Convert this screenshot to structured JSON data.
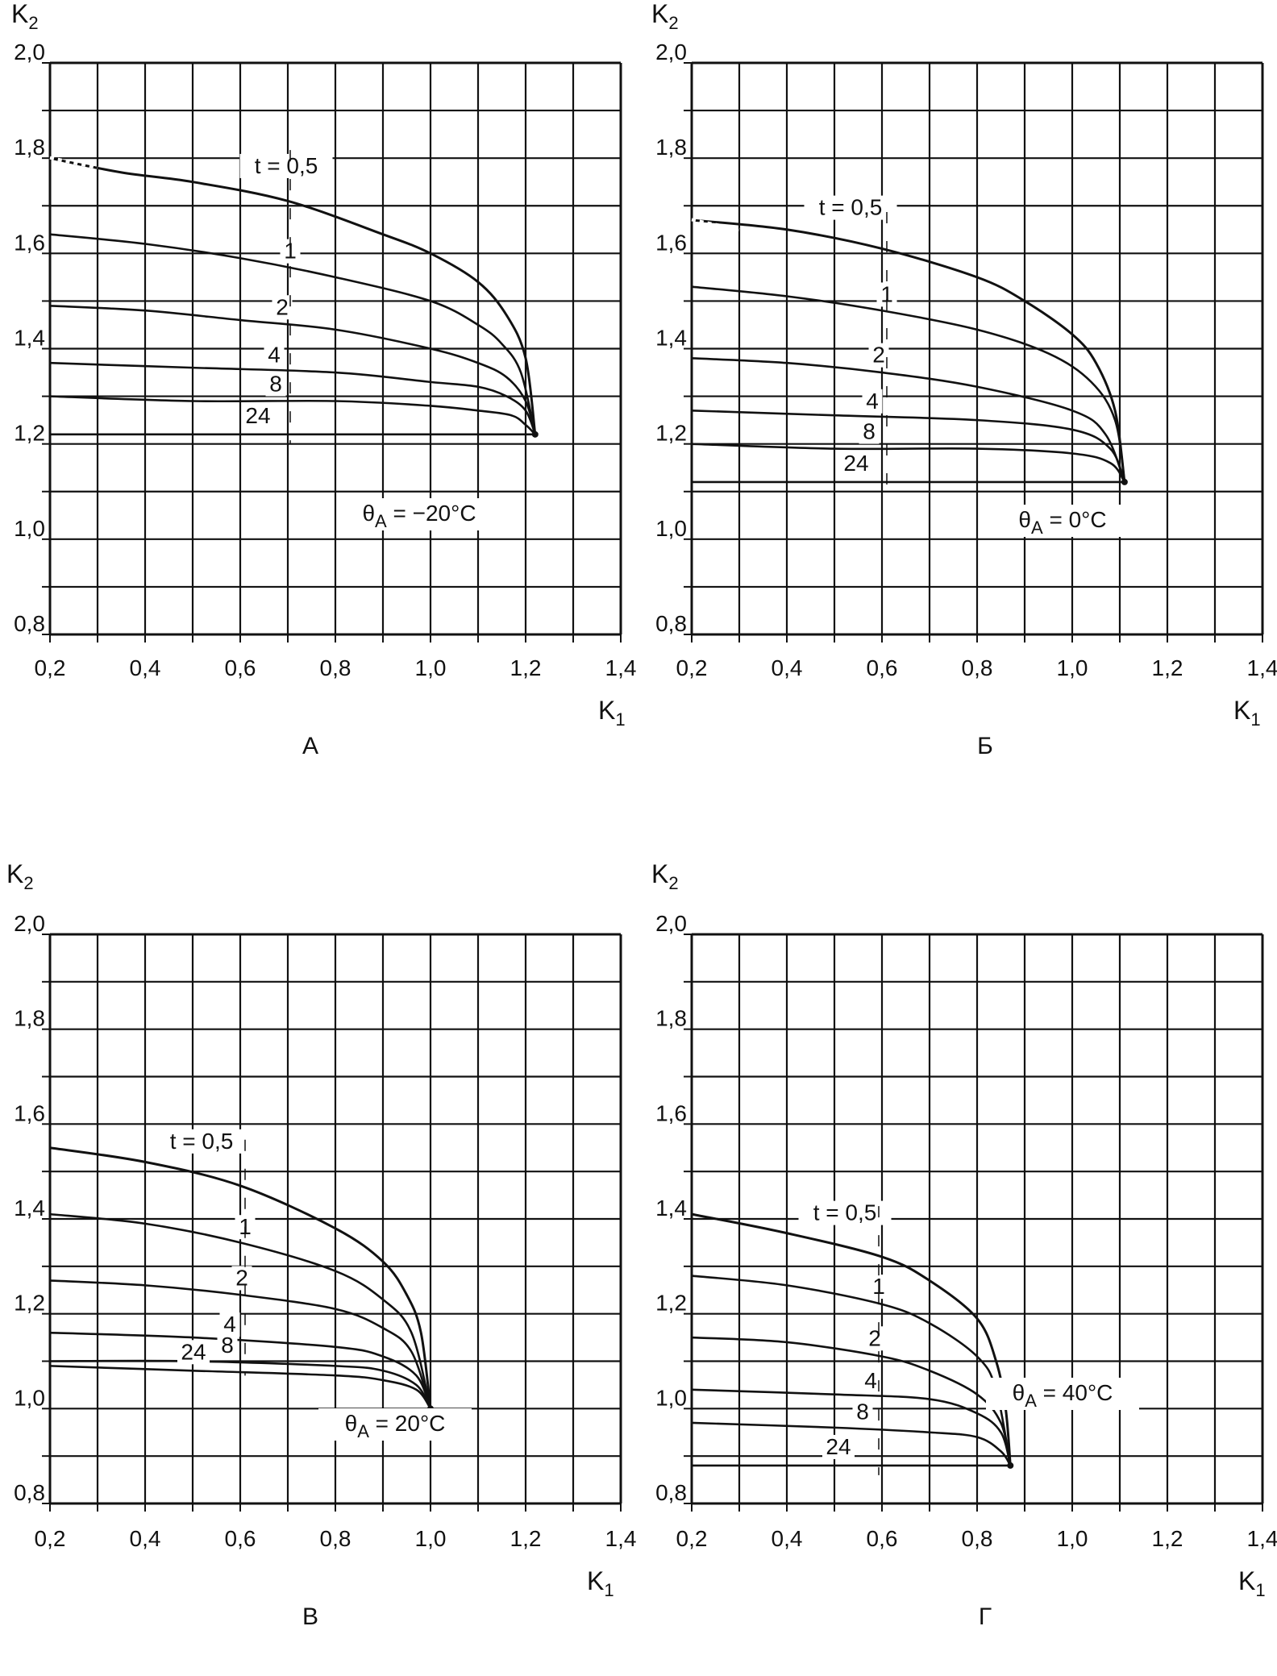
{
  "figure": {
    "colors": {
      "ink": "#111111",
      "background": "#ffffff"
    }
  },
  "chart_data": [
    {
      "type": "line",
      "panel_label": "А",
      "xlabel": "K",
      "xlabel_sub": "1",
      "ylabel": "K",
      "ylabel_sub": "2",
      "xlim": [
        0.2,
        1.4
      ],
      "ylim": [
        0.8,
        2.0
      ],
      "x_ticks": [
        "0,2",
        "0,4",
        "0,6",
        "0,8",
        "1,0",
        "1,2",
        "1,4"
      ],
      "y_ticks": [
        "2,0",
        "1,8",
        "1,6",
        "1,4",
        "1,2",
        "1,0",
        "0,8"
      ],
      "grid": true,
      "annotation": {
        "prefix": "θ",
        "sub": "A",
        "text": " = −20°C"
      },
      "end_point": [
        1.22,
        1.22
      ],
      "series": [
        {
          "name": "t = 0,5",
          "start": 1.8,
          "x": [
            0.2,
            0.35,
            0.5,
            0.7,
            0.9,
            1.0,
            1.1,
            1.16,
            1.2,
            1.22
          ],
          "y": [
            1.8,
            1.77,
            1.75,
            1.71,
            1.64,
            1.6,
            1.54,
            1.47,
            1.38,
            1.22
          ]
        },
        {
          "name": "1",
          "start": 1.64,
          "x": [
            0.2,
            0.4,
            0.6,
            0.8,
            1.0,
            1.1,
            1.15,
            1.19,
            1.22
          ],
          "y": [
            1.64,
            1.62,
            1.59,
            1.55,
            1.5,
            1.45,
            1.41,
            1.35,
            1.22
          ]
        },
        {
          "name": "2",
          "start": 1.49,
          "x": [
            0.2,
            0.4,
            0.6,
            0.8,
            1.0,
            1.1,
            1.16,
            1.2,
            1.22
          ],
          "y": [
            1.49,
            1.48,
            1.46,
            1.44,
            1.4,
            1.37,
            1.34,
            1.29,
            1.22
          ]
        },
        {
          "name": "4",
          "start": 1.37,
          "x": [
            0.2,
            0.5,
            0.8,
            1.0,
            1.1,
            1.16,
            1.2,
            1.22
          ],
          "y": [
            1.37,
            1.36,
            1.35,
            1.33,
            1.32,
            1.3,
            1.27,
            1.22
          ]
        },
        {
          "name": "8",
          "start": 1.3,
          "x": [
            0.2,
            0.5,
            0.8,
            1.0,
            1.1,
            1.17,
            1.2,
            1.22
          ],
          "y": [
            1.3,
            1.29,
            1.29,
            1.28,
            1.27,
            1.26,
            1.24,
            1.22
          ]
        },
        {
          "name": "24",
          "start": 1.22,
          "x": [
            0.2,
            0.7,
            1.0,
            1.22
          ],
          "y": [
            1.22,
            1.22,
            1.22,
            1.22
          ]
        }
      ]
    },
    {
      "type": "line",
      "panel_label": "Б",
      "xlabel": "K",
      "xlabel_sub": "1",
      "ylabel": "K",
      "ylabel_sub": "2",
      "xlim": [
        0.2,
        1.4
      ],
      "ylim": [
        0.8,
        2.0
      ],
      "x_ticks": [
        "0,2",
        "0,4",
        "0,6",
        "0,8",
        "1,0",
        "1,2",
        "1,4"
      ],
      "y_ticks": [
        "2,0",
        "1,8",
        "1,6",
        "1,4",
        "1,2",
        "1,0",
        "0,8"
      ],
      "grid": true,
      "annotation": {
        "prefix": "θ",
        "sub": "A",
        "text": " = 0°C"
      },
      "end_point": [
        1.11,
        1.12
      ],
      "series": [
        {
          "name": "t = 0,5",
          "start": 1.67,
          "x": [
            0.2,
            0.4,
            0.6,
            0.8,
            0.9,
            1.0,
            1.05,
            1.09,
            1.11
          ],
          "y": [
            1.67,
            1.65,
            1.61,
            1.55,
            1.5,
            1.43,
            1.37,
            1.27,
            1.12
          ]
        },
        {
          "name": "1",
          "start": 1.53,
          "x": [
            0.2,
            0.4,
            0.6,
            0.8,
            0.95,
            1.04,
            1.09,
            1.11
          ],
          "y": [
            1.53,
            1.51,
            1.48,
            1.44,
            1.39,
            1.33,
            1.25,
            1.12
          ]
        },
        {
          "name": "2",
          "start": 1.38,
          "x": [
            0.2,
            0.4,
            0.6,
            0.8,
            1.0,
            1.07,
            1.11
          ],
          "y": [
            1.38,
            1.37,
            1.35,
            1.32,
            1.27,
            1.22,
            1.12
          ]
        },
        {
          "name": "4",
          "start": 1.27,
          "x": [
            0.2,
            0.5,
            0.8,
            1.0,
            1.08,
            1.11
          ],
          "y": [
            1.27,
            1.26,
            1.25,
            1.23,
            1.19,
            1.12
          ]
        },
        {
          "name": "8",
          "start": 1.2,
          "x": [
            0.2,
            0.5,
            0.8,
            1.0,
            1.08,
            1.11
          ],
          "y": [
            1.2,
            1.19,
            1.19,
            1.18,
            1.16,
            1.12
          ]
        },
        {
          "name": "24",
          "start": 1.12,
          "x": [
            0.2,
            0.7,
            1.11
          ],
          "y": [
            1.12,
            1.12,
            1.12
          ]
        }
      ]
    },
    {
      "type": "line",
      "panel_label": "В",
      "xlabel": "K",
      "xlabel_sub": "1",
      "ylabel": "K",
      "ylabel_sub": "2",
      "xlim": [
        0.2,
        1.4
      ],
      "ylim": [
        0.8,
        2.0
      ],
      "x_ticks": [
        "0,2",
        "0,4",
        "0,6",
        "0,8",
        "1,0",
        "1,2",
        "1,4"
      ],
      "y_ticks": [
        "2,0",
        "1,8",
        "1,6",
        "1,4",
        "1,2",
        "1,0",
        "0,8"
      ],
      "grid": true,
      "annotation": {
        "prefix": "θ",
        "sub": "A",
        "text": " = 20°C"
      },
      "end_point": [
        1.0,
        1.0
      ],
      "series": [
        {
          "name": "t = 0,5",
          "start": 1.55,
          "x": [
            0.2,
            0.4,
            0.6,
            0.8,
            0.9,
            0.95,
            0.98,
            1.0
          ],
          "y": [
            1.55,
            1.52,
            1.47,
            1.38,
            1.31,
            1.24,
            1.16,
            1.0
          ]
        },
        {
          "name": "1",
          "start": 1.41,
          "x": [
            0.2,
            0.4,
            0.6,
            0.8,
            0.9,
            0.96,
            1.0
          ],
          "y": [
            1.41,
            1.39,
            1.35,
            1.29,
            1.23,
            1.16,
            1.0
          ]
        },
        {
          "name": "2",
          "start": 1.27,
          "x": [
            0.2,
            0.4,
            0.6,
            0.8,
            0.9,
            0.96,
            1.0
          ],
          "y": [
            1.27,
            1.26,
            1.24,
            1.21,
            1.17,
            1.12,
            1.0
          ]
        },
        {
          "name": "4",
          "start": 1.16,
          "x": [
            0.2,
            0.5,
            0.8,
            0.9,
            0.97,
            1.0
          ],
          "y": [
            1.16,
            1.15,
            1.13,
            1.11,
            1.07,
            1.0
          ]
        },
        {
          "name": "8",
          "start": 1.1,
          "x": [
            0.2,
            0.5,
            0.8,
            0.9,
            0.97,
            1.0
          ],
          "y": [
            1.1,
            1.1,
            1.09,
            1.08,
            1.05,
            1.0
          ]
        },
        {
          "name": "24",
          "start": 1.09,
          "x": [
            0.2,
            0.5,
            0.8,
            0.9,
            0.97,
            1.0
          ],
          "y": [
            1.09,
            1.08,
            1.07,
            1.06,
            1.04,
            1.0
          ]
        }
      ]
    },
    {
      "type": "line",
      "panel_label": "Г",
      "xlabel": "K",
      "xlabel_sub": "1",
      "ylabel": "K",
      "ylabel_sub": "2",
      "xlim": [
        0.2,
        1.4
      ],
      "ylim": [
        0.8,
        2.0
      ],
      "x_ticks": [
        "0,2",
        "0,4",
        "0,6",
        "0,8",
        "1,0",
        "1,2",
        "1,4"
      ],
      "y_ticks": [
        "2,0",
        "1,8",
        "1,6",
        "1,4",
        "1,2",
        "1,0",
        "0,8"
      ],
      "grid": true,
      "annotation": {
        "prefix": "θ",
        "sub": "A",
        "text": " = 40°C"
      },
      "end_point": [
        0.87,
        0.88
      ],
      "series": [
        {
          "name": "t = 0,5",
          "start": 1.41,
          "x": [
            0.2,
            0.4,
            0.6,
            0.7,
            0.8,
            0.84,
            0.86,
            0.87
          ],
          "y": [
            1.41,
            1.37,
            1.32,
            1.27,
            1.19,
            1.1,
            1.0,
            0.88
          ]
        },
        {
          "name": "1",
          "start": 1.28,
          "x": [
            0.2,
            0.4,
            0.6,
            0.7,
            0.8,
            0.84,
            0.87
          ],
          "y": [
            1.28,
            1.26,
            1.22,
            1.18,
            1.11,
            1.04,
            0.88
          ]
        },
        {
          "name": "2",
          "start": 1.15,
          "x": [
            0.2,
            0.4,
            0.6,
            0.7,
            0.8,
            0.85,
            0.87
          ],
          "y": [
            1.15,
            1.14,
            1.11,
            1.08,
            1.03,
            0.97,
            0.88
          ]
        },
        {
          "name": "4",
          "start": 1.04,
          "x": [
            0.2,
            0.5,
            0.7,
            0.8,
            0.85,
            0.87
          ],
          "y": [
            1.04,
            1.03,
            1.02,
            0.99,
            0.95,
            0.88
          ]
        },
        {
          "name": "8",
          "start": 0.97,
          "x": [
            0.2,
            0.5,
            0.7,
            0.8,
            0.85,
            0.87
          ],
          "y": [
            0.97,
            0.96,
            0.95,
            0.94,
            0.91,
            0.88
          ]
        },
        {
          "name": "24",
          "start": 0.88,
          "x": [
            0.2,
            0.6,
            0.87
          ],
          "y": [
            0.88,
            0.88,
            0.88
          ]
        }
      ]
    }
  ]
}
